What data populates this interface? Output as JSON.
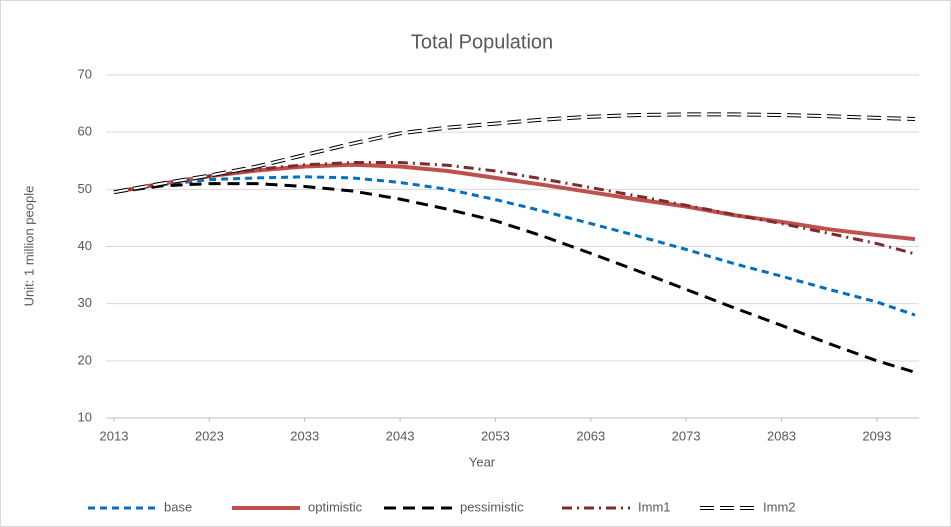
{
  "chart_data": {
    "type": "line",
    "title": "Total Population",
    "x_label": "Year",
    "y_label": "Unit: 1 million people",
    "x": [
      2013,
      2018,
      2023,
      2028,
      2033,
      2038,
      2043,
      2048,
      2053,
      2058,
      2063,
      2068,
      2073,
      2078,
      2083,
      2088,
      2093,
      2097
    ],
    "xlim": [
      2013,
      2097
    ],
    "xticks": [
      2013,
      2023,
      2033,
      2043,
      2053,
      2063,
      2073,
      2083,
      2093
    ],
    "ylim": [
      10,
      70
    ],
    "yticks": [
      10,
      20,
      30,
      40,
      50,
      60,
      70
    ],
    "grid": true,
    "legend": "bottom",
    "series": [
      {
        "name": "base",
        "color": "#0070c0",
        "values": [
          49.5,
          50.8,
          51.7,
          52.0,
          52.2,
          52.0,
          51.2,
          50.0,
          48.2,
          46.2,
          44.0,
          41.8,
          39.5,
          37.0,
          34.8,
          32.5,
          30.3,
          28.0
        ]
      },
      {
        "name": "optimistic",
        "color": "#c0504d",
        "values": [
          49.5,
          51.0,
          52.3,
          53.3,
          54.0,
          54.3,
          54.0,
          53.2,
          52.0,
          50.8,
          49.5,
          48.2,
          47.0,
          45.5,
          44.3,
          43.0,
          42.0,
          41.3
        ]
      },
      {
        "name": "pessimistic",
        "color": "#000000",
        "values": [
          49.5,
          50.6,
          51.0,
          51.0,
          50.5,
          49.7,
          48.3,
          46.5,
          44.5,
          41.8,
          38.8,
          35.7,
          32.5,
          29.3,
          26.2,
          23.0,
          20.0,
          18.0
        ]
      },
      {
        "name": "Imm1",
        "color": "#7b2c2c",
        "values": [
          49.5,
          51.0,
          52.3,
          53.5,
          54.3,
          54.7,
          54.7,
          54.2,
          53.2,
          51.8,
          50.3,
          48.8,
          47.2,
          45.6,
          44.0,
          42.3,
          40.5,
          38.7
        ]
      },
      {
        "name": "Imm2",
        "color": "#000000",
        "values": [
          49.5,
          51.0,
          52.4,
          54.0,
          56.0,
          58.0,
          59.8,
          60.8,
          61.5,
          62.2,
          62.7,
          63.0,
          63.1,
          63.1,
          63.0,
          62.8,
          62.5,
          62.3
        ]
      }
    ]
  }
}
